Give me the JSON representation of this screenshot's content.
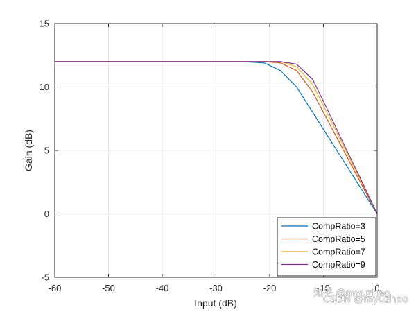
{
  "chart_data": {
    "type": "line",
    "xlabel": "Input (dB)",
    "ylabel": "Gain (dB)",
    "xlim": [
      -60,
      0
    ],
    "ylim": [
      -5,
      15
    ],
    "xticks": [
      -60,
      -50,
      -40,
      -30,
      -20,
      -10,
      0
    ],
    "yticks": [
      -5,
      0,
      5,
      10,
      15
    ],
    "xtick_labels": [
      "-60",
      "-50",
      "-40",
      "-30",
      "-20",
      "-10",
      "0"
    ],
    "ytick_labels": [
      "-5",
      "0",
      "5",
      "10",
      "15"
    ],
    "grid": true,
    "legend_position": "bottom-right",
    "series": [
      {
        "name": "CompRatio=3",
        "color": "#0072BD",
        "x": [
          -60,
          -25,
          -21,
          -18,
          -15,
          -12,
          -9,
          -6,
          -3,
          0
        ],
        "y": [
          12,
          12,
          11.9,
          11.3,
          10,
          8,
          6,
          4,
          2,
          0
        ]
      },
      {
        "name": "CompRatio=5",
        "color": "#D95319",
        "x": [
          -60,
          -21,
          -18,
          -15,
          -12,
          -9,
          -6,
          -3,
          0
        ],
        "y": [
          12,
          12,
          11.9,
          11.3,
          9.6,
          7.2,
          4.8,
          2.4,
          0
        ]
      },
      {
        "name": "CompRatio=7",
        "color": "#EDB120",
        "x": [
          -60,
          -21,
          -18,
          -15,
          -12,
          -9,
          -6,
          -3,
          0
        ],
        "y": [
          12,
          12,
          12,
          11.6,
          10.2,
          7.7,
          5.1,
          2.6,
          0
        ]
      },
      {
        "name": "CompRatio=9",
        "color": "#7E2F8E",
        "x": [
          -60,
          -21,
          -18,
          -15,
          -12,
          -9,
          -6,
          -3,
          0
        ],
        "y": [
          12,
          12,
          12,
          11.8,
          10.6,
          8,
          5.3,
          2.7,
          0
        ]
      }
    ]
  },
  "watermark": {
    "line1": "知乎 @myuzhao",
    "line2": "CSDN @myuzhao"
  }
}
